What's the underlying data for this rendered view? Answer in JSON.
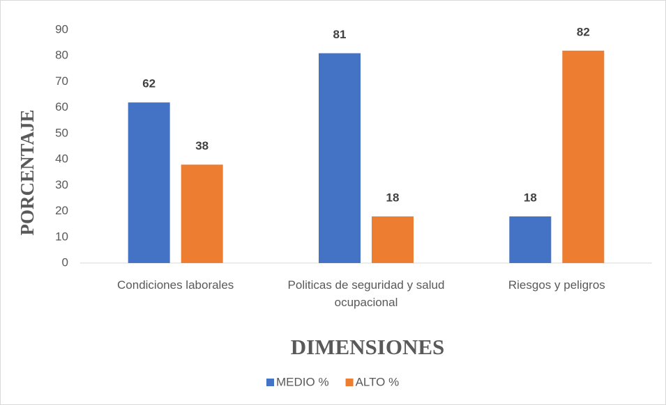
{
  "chart_data": {
    "type": "bar",
    "categories": [
      "Condiciones laborales",
      "Politicas de seguridad y salud ocupacional",
      "Riesgos y peligros"
    ],
    "series": [
      {
        "name": "MEDIO %",
        "color": "#4472c4",
        "values": [
          62,
          81,
          18
        ]
      },
      {
        "name": "ALTO %",
        "color": "#ed7d31",
        "values": [
          38,
          18,
          82
        ]
      }
    ],
    "ylim": [
      0,
      90
    ],
    "yticks": [
      0,
      10,
      20,
      30,
      40,
      50,
      60,
      70,
      80,
      90
    ],
    "y_label": "PORCENTAJE",
    "x_label": "DIMENSIONES",
    "grid": false,
    "legend": "bottom"
  }
}
